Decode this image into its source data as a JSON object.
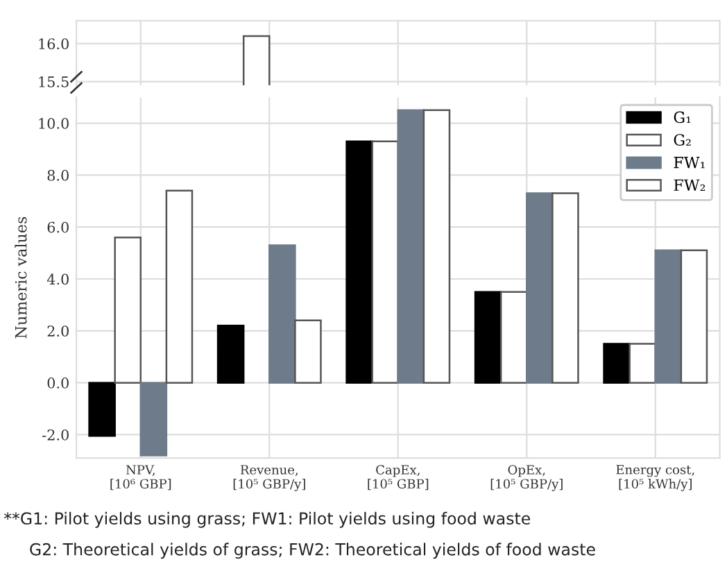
{
  "chart_data": [
    {
      "type": "bar",
      "categories": [
        null,
        null,
        null,
        null,
        null
      ],
      "series": [
        {
          "color": "#000000",
          "values": [
            null,
            null,
            null,
            null,
            null
          ]
        },
        {
          "color": "#ffffff",
          "values": [
            null,
            16.1,
            null,
            null,
            null
          ]
        },
        {
          "color": "#6e7b8b",
          "values": [
            null,
            null,
            null,
            null,
            null
          ]
        },
        {
          "color": "#ffffff",
          "values": [
            null,
            null,
            null,
            null,
            null
          ]
        }
      ],
      "ylim": [
        15.45,
        16.3
      ],
      "yticks": [
        {
          "value": 15.5,
          "label": "15.5"
        },
        {
          "value": 16.0,
          "label": "16.0"
        }
      ],
      "tick_labels": "y",
      "grid": true
    },
    {
      "type": "bar",
      "categories": [
        "NPV,\n[10⁶ GBP]",
        "Revenue,\n[10⁵ GBP/y]",
        "CapEx,\n[10⁵ GBP]",
        "OpEx,\n[10⁵ GBP/y]",
        "Energy cost,\n[10⁵ kWh/y]"
      ],
      "series": [
        {
          "name": "G₁",
          "color": "#000000",
          "values": [
            -2.05,
            2.2,
            9.3,
            3.5,
            1.5
          ]
        },
        {
          "name": "G₂",
          "color": "#ffffff",
          "values": [
            5.6,
            null,
            9.3,
            3.5,
            1.5
          ]
        },
        {
          "name": "FW₁",
          "color": "#6e7b8b",
          "values": [
            -2.8,
            5.3,
            10.5,
            7.3,
            5.1
          ]
        },
        {
          "name": "FW₂",
          "color": "#ffffff",
          "values": [
            7.4,
            2.4,
            10.5,
            7.3,
            5.1
          ]
        }
      ],
      "ylim": [
        -2.9,
        11.0
      ],
      "yticks": [
        {
          "value": -2,
          "label": "-2.0"
        },
        {
          "value": 0,
          "label": "0.0"
        },
        {
          "value": 2,
          "label": "2.0"
        },
        {
          "value": 4,
          "label": "4.0"
        },
        {
          "value": 6,
          "label": "6.0"
        },
        {
          "value": 8,
          "label": "8.0"
        },
        {
          "value": 10,
          "label": "10.0"
        }
      ],
      "ylabel": "Numeric values",
      "grid": true,
      "legend": "top right",
      "annotations": [
        "**G1: Pilot yields using grass; FW1: Pilot yields using food waste",
        "G2: Theoretical yields of grass; FW2: Theoretical yields of food waste"
      ]
    }
  ]
}
